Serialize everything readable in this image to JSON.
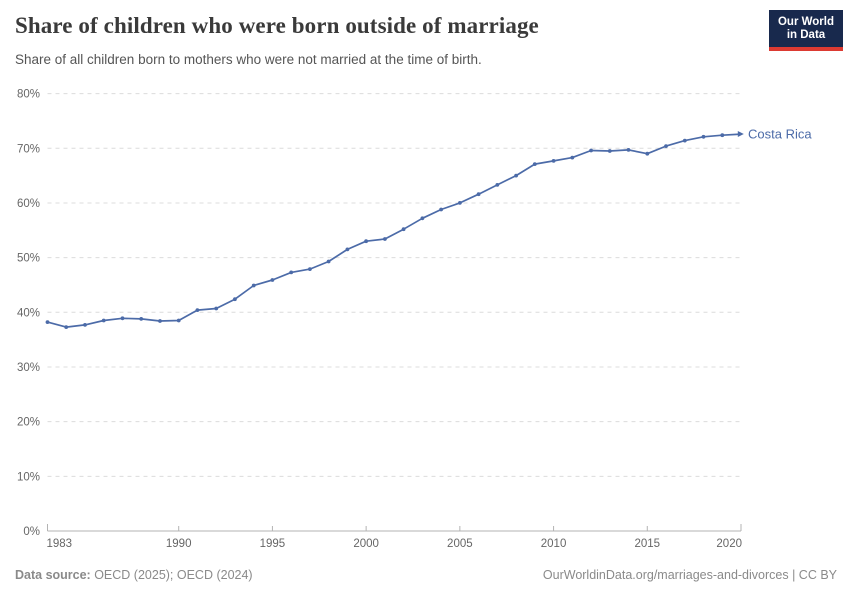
{
  "header": {
    "title": "Share of children who were born outside of marriage",
    "subtitle": "Share of all children born to mothers who were not married at the time of birth.",
    "logo": {
      "line1": "Our World",
      "line2": "in Data"
    }
  },
  "chart_data": {
    "type": "line",
    "title": "Share of children who were born outside of marriage",
    "xlabel": "",
    "ylabel": "",
    "x": [
      1983,
      1984,
      1985,
      1986,
      1987,
      1988,
      1989,
      1990,
      1991,
      1992,
      1993,
      1994,
      1995,
      1996,
      1997,
      1998,
      1999,
      2000,
      2001,
      2002,
      2003,
      2004,
      2005,
      2006,
      2007,
      2008,
      2009,
      2010,
      2011,
      2012,
      2013,
      2014,
      2015,
      2016,
      2017,
      2018,
      2019,
      2020
    ],
    "series": [
      {
        "name": "Costa Rica",
        "color": "#4C6BA8",
        "values": [
          38.2,
          37.3,
          37.7,
          38.5,
          38.9,
          38.8,
          38.4,
          38.5,
          40.4,
          40.7,
          42.4,
          44.9,
          45.9,
          47.3,
          47.9,
          49.3,
          51.5,
          53.0,
          53.4,
          55.2,
          57.2,
          58.8,
          60.0,
          61.6,
          63.3,
          65.0,
          67.1,
          67.7,
          68.3,
          69.6,
          69.5,
          69.7,
          69.0,
          70.4,
          71.4,
          72.1,
          72.4,
          72.6
        ]
      }
    ],
    "xlim": [
      1983,
      2020
    ],
    "ylim": [
      0,
      80
    ],
    "yticks": [
      0,
      10,
      20,
      30,
      40,
      50,
      60,
      70,
      80
    ],
    "ytick_suffix": "%",
    "xticks": [
      1983,
      1990,
      1995,
      2000,
      2005,
      2010,
      2015,
      2020
    ],
    "grid": "horizontal-dashed",
    "legend_position": "end-of-line-label"
  },
  "footer": {
    "source_label": "Data source:",
    "source_text": " OECD (2025); OECD (2024)",
    "credit": "OurWorldinData.org/marriages-and-divorces | CC BY"
  },
  "colors": {
    "line": "#4C6BA8",
    "gridline": "#dcdcdc",
    "axis": "#b3b3b3",
    "tick_label": "#666666",
    "title": "#3a3a3a",
    "subtitle": "#555555",
    "footer_text": "#8a8a8a",
    "logo_bg": "#18294d",
    "logo_accent": "#dc3a32"
  }
}
